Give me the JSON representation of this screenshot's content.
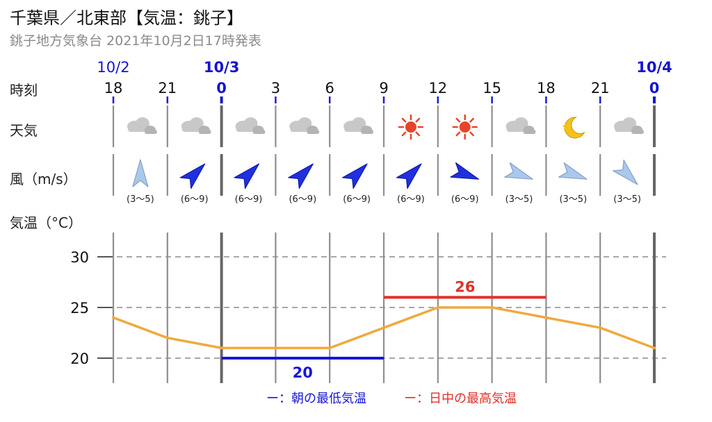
{
  "header": {
    "title": "千葉県／北東部【気温：銚子】",
    "subtitle": "銚子地方気象台 2021年10月2日17時発表"
  },
  "rows": {
    "time_label": "時刻",
    "weather_label": "天気",
    "wind_label": "風（m/s）",
    "temp_label": "気温（°C）"
  },
  "dates": [
    {
      "label": "10/2",
      "col": 0,
      "bold": false
    },
    {
      "label": "10/3",
      "col": 2,
      "bold": true
    },
    {
      "label": "10/4",
      "col": 10,
      "bold": true
    }
  ],
  "hours": [
    "18",
    "21",
    "0",
    "3",
    "6",
    "9",
    "12",
    "15",
    "18",
    "21",
    "0"
  ],
  "weather": [
    "cloud-icon",
    "cloud-icon",
    "cloud-icon",
    "cloud-icon",
    "cloud-icon",
    "sun-icon",
    "sun-icon",
    "cloud-icon",
    "moon-icon",
    "cloud-icon"
  ],
  "wind": [
    {
      "range": "(3〜5)",
      "strong": false,
      "dir_deg": 0
    },
    {
      "range": "(6〜9)",
      "strong": true,
      "dir_deg": 45
    },
    {
      "range": "(6〜9)",
      "strong": true,
      "dir_deg": 45
    },
    {
      "range": "(6〜9)",
      "strong": true,
      "dir_deg": 45
    },
    {
      "range": "(6〜9)",
      "strong": true,
      "dir_deg": 45
    },
    {
      "range": "(6〜9)",
      "strong": true,
      "dir_deg": 45
    },
    {
      "range": "(6〜9)",
      "strong": true,
      "dir_deg": 110
    },
    {
      "range": "(3〜5)",
      "strong": false,
      "dir_deg": 110
    },
    {
      "range": "(3〜5)",
      "strong": false,
      "dir_deg": 110
    },
    {
      "range": "(3〜5)",
      "strong": false,
      "dir_deg": 135
    }
  ],
  "legend": {
    "min_label": "ー：朝の最低気温",
    "max_label": "ー：日中の最高気温"
  },
  "colors": {
    "line": "#f0a93e",
    "min": "#1616d8",
    "max": "#e0302a",
    "date_blue": "#1414d0",
    "arrow_strong": "#2030e0",
    "arrow_weak": "#a8c8ee",
    "sun": "#e8442a",
    "moon": "#f5c21a",
    "cloud": "#c8c8c8"
  },
  "chart_data": {
    "type": "line",
    "title": "千葉県／北東部【気温：銚子】",
    "xlabel": "時刻",
    "ylabel": "気温（°C）",
    "x": [
      "10/2 18",
      "10/2 21",
      "10/3 0",
      "10/3 3",
      "10/3 6",
      "10/3 9",
      "10/3 12",
      "10/3 15",
      "10/3 18",
      "10/3 21",
      "10/4 0"
    ],
    "series": [
      {
        "values": [
          24,
          22,
          21,
          21,
          21,
          23,
          25,
          25,
          24,
          23,
          21
        ]
      }
    ],
    "yticks": [
      20,
      25,
      30
    ],
    "ylim": [
      18,
      32
    ],
    "grid": true,
    "min_temp": {
      "value": 20,
      "label": "20",
      "from": "10/3 0",
      "to": "10/3 9"
    },
    "max_temp": {
      "value": 26,
      "label": "26",
      "from": "10/3 9",
      "to": "10/3 18"
    }
  }
}
